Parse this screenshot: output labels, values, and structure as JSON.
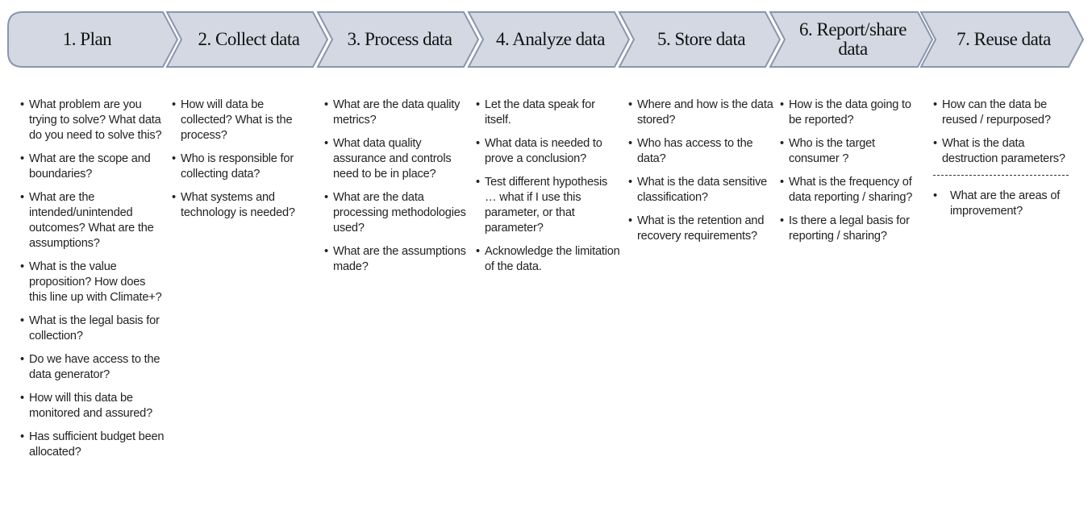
{
  "colors": {
    "stage_fill": "#d3d8e3",
    "stage_stroke": "#8a96ae"
  },
  "stages": [
    {
      "label": "1. Plan",
      "items": [
        "What problem are you  trying to solve? What data do you need to solve this?",
        "What are the scope and boundaries?",
        "What are the intended/unintended outcomes? What are the assumptions?",
        "What is the value proposition? How does this line up with Climate+?",
        "What is the legal basis for collection?",
        "Do we have access to the data generator?",
        "How will this data be monitored and assured?",
        "Has sufficient budget been allocated?"
      ]
    },
    {
      "label": "2. Collect data",
      "items": [
        "How will data be collected? What is the process?",
        "Who is responsible for collecting data?",
        "What systems and technology is needed?"
      ]
    },
    {
      "label": "3. Process data",
      "items": [
        "What are the data quality metrics?",
        "What data quality assurance and controls need to be in place?",
        "What are the data processing methodologies  used?",
        "What are the assumptions made?"
      ]
    },
    {
      "label": "4. Analyze data",
      "items": [
        "Let the data speak for itself.",
        "What data is needed to prove a conclusion?",
        "Test different hypothesis … what if I use this parameter, or that parameter?",
        "Acknowledge the limitation of the data."
      ]
    },
    {
      "label": "5. Store data",
      "items": [
        "Where and how is the data stored?",
        "Who has access to the data?",
        "What is the data sensitive classification?",
        "What is the retention and recovery requirements?"
      ]
    },
    {
      "label": "6. Report/share data",
      "items": [
        "How is the data going to be reported?",
        "Who is the target consumer ?",
        "What is the frequency of data reporting / sharing?",
        "Is there a legal basis for reporting / sharing?"
      ]
    },
    {
      "label": "7. Reuse data",
      "items": [
        "How can the data be reused / repurposed?",
        "What is the data destruction parameters?"
      ],
      "extra_items": [
        "What are the areas of improvement?"
      ]
    }
  ]
}
